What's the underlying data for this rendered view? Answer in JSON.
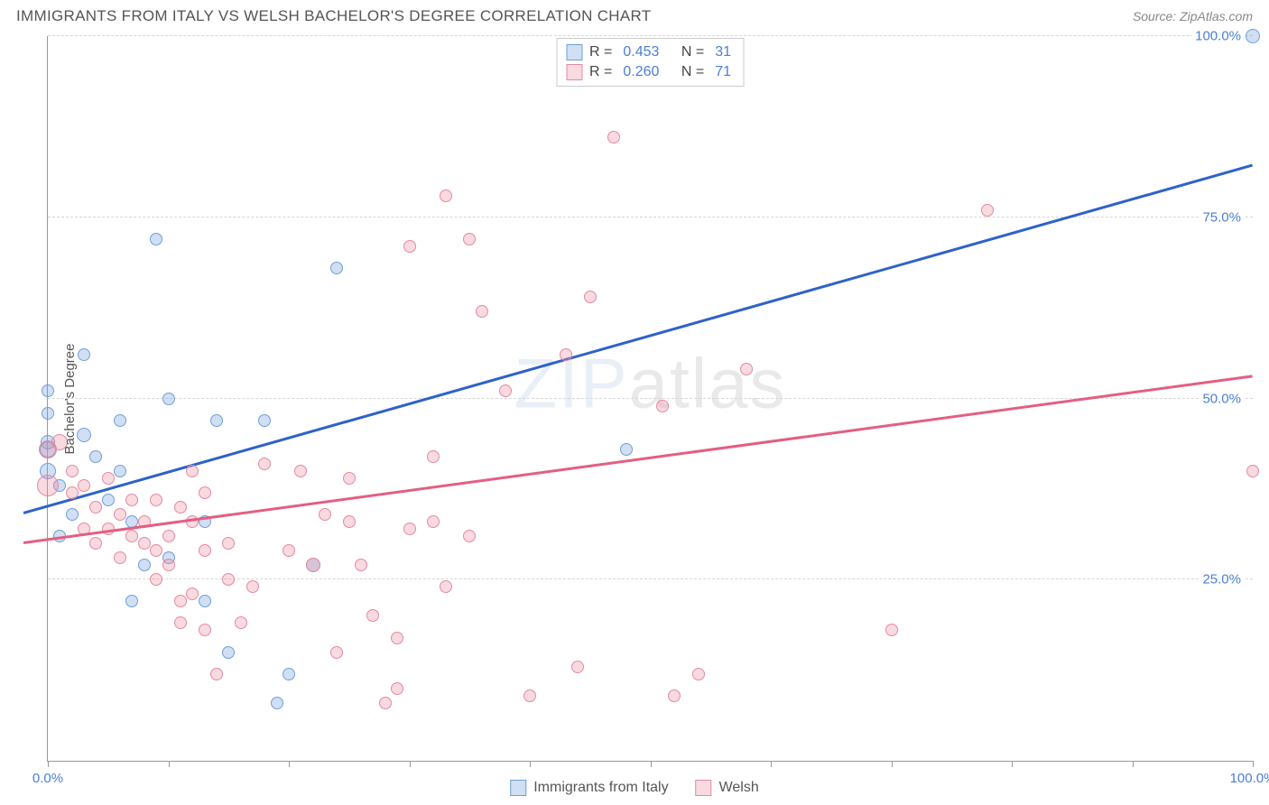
{
  "header": {
    "title": "IMMIGRANTS FROM ITALY VS WELSH BACHELOR'S DEGREE CORRELATION CHART",
    "source": "Source: ZipAtlas.com"
  },
  "chart": {
    "type": "scatter",
    "ylabel": "Bachelor's Degree",
    "xlim": [
      0,
      100
    ],
    "ylim": [
      0,
      100
    ],
    "xtick_positions": [
      0,
      10,
      20,
      30,
      40,
      50,
      60,
      70,
      80,
      90,
      100
    ],
    "xtick_labels": {
      "0": "0.0%",
      "100": "100.0%"
    },
    "ytick_positions": [
      0,
      25,
      50,
      75,
      100
    ],
    "ytick_labels": {
      "25": "25.0%",
      "50": "50.0%",
      "75": "75.0%",
      "100": "100.0%"
    },
    "grid_color": "#d6d6d6",
    "background_color": "#ffffff",
    "series": [
      {
        "name": "Immigrants from Italy",
        "fill": "rgba(119,163,221,0.35)",
        "stroke": "#6f9fd8",
        "line_color": "#2e62c9",
        "trend": {
          "x0": -2,
          "y0": 34,
          "x1": 100,
          "y1": 82
        },
        "R": "0.453",
        "N": "31",
        "points": [
          {
            "x": 100,
            "y": 100,
            "r": 8
          },
          {
            "x": 48,
            "y": 43,
            "r": 7
          },
          {
            "x": 24,
            "y": 68,
            "r": 7
          },
          {
            "x": 9,
            "y": 72,
            "r": 7
          },
          {
            "x": 3,
            "y": 56,
            "r": 7
          },
          {
            "x": 0,
            "y": 51,
            "r": 7
          },
          {
            "x": 10,
            "y": 50,
            "r": 7
          },
          {
            "x": 6,
            "y": 47,
            "r": 7
          },
          {
            "x": 14,
            "y": 47,
            "r": 7
          },
          {
            "x": 18,
            "y": 47,
            "r": 7
          },
          {
            "x": 0,
            "y": 48,
            "r": 7
          },
          {
            "x": 0,
            "y": 43,
            "r": 9
          },
          {
            "x": 0,
            "y": 44,
            "r": 8
          },
          {
            "x": 4,
            "y": 42,
            "r": 7
          },
          {
            "x": 1,
            "y": 38,
            "r": 7
          },
          {
            "x": 2,
            "y": 34,
            "r": 7
          },
          {
            "x": 7,
            "y": 33,
            "r": 7
          },
          {
            "x": 13,
            "y": 33,
            "r": 7
          },
          {
            "x": 8,
            "y": 27,
            "r": 7
          },
          {
            "x": 10,
            "y": 28,
            "r": 7
          },
          {
            "x": 22,
            "y": 27,
            "r": 8
          },
          {
            "x": 7,
            "y": 22,
            "r": 7
          },
          {
            "x": 13,
            "y": 22,
            "r": 7
          },
          {
            "x": 15,
            "y": 15,
            "r": 7
          },
          {
            "x": 20,
            "y": 12,
            "r": 7
          },
          {
            "x": 19,
            "y": 8,
            "r": 7
          },
          {
            "x": 3,
            "y": 45,
            "r": 8
          },
          {
            "x": 0,
            "y": 40,
            "r": 9
          },
          {
            "x": 5,
            "y": 36,
            "r": 7
          },
          {
            "x": 1,
            "y": 31,
            "r": 7
          },
          {
            "x": 6,
            "y": 40,
            "r": 7
          }
        ]
      },
      {
        "name": "Welsh",
        "fill": "rgba(234,140,160,0.32)",
        "stroke": "#e48aa0",
        "line_color": "#e35f82",
        "trend": {
          "x0": -2,
          "y0": 30,
          "x1": 100,
          "y1": 53
        },
        "R": "0.260",
        "N": "71",
        "points": [
          {
            "x": 100,
            "y": 40,
            "r": 7
          },
          {
            "x": 78,
            "y": 76,
            "r": 7
          },
          {
            "x": 70,
            "y": 18,
            "r": 7
          },
          {
            "x": 58,
            "y": 54,
            "r": 7
          },
          {
            "x": 54,
            "y": 12,
            "r": 7
          },
          {
            "x": 52,
            "y": 9,
            "r": 7
          },
          {
            "x": 51,
            "y": 49,
            "r": 7
          },
          {
            "x": 47,
            "y": 86,
            "r": 7
          },
          {
            "x": 45,
            "y": 64,
            "r": 7
          },
          {
            "x": 44,
            "y": 13,
            "r": 7
          },
          {
            "x": 43,
            "y": 56,
            "r": 7
          },
          {
            "x": 40,
            "y": 9,
            "r": 7
          },
          {
            "x": 38,
            "y": 51,
            "r": 7
          },
          {
            "x": 36,
            "y": 62,
            "r": 7
          },
          {
            "x": 35,
            "y": 31,
            "r": 7
          },
          {
            "x": 35,
            "y": 72,
            "r": 7
          },
          {
            "x": 33,
            "y": 78,
            "r": 7
          },
          {
            "x": 32,
            "y": 42,
            "r": 7
          },
          {
            "x": 32,
            "y": 33,
            "r": 7
          },
          {
            "x": 30,
            "y": 71,
            "r": 7
          },
          {
            "x": 30,
            "y": 32,
            "r": 7
          },
          {
            "x": 29,
            "y": 10,
            "r": 7
          },
          {
            "x": 29,
            "y": 17,
            "r": 7
          },
          {
            "x": 28,
            "y": 8,
            "r": 7
          },
          {
            "x": 26,
            "y": 27,
            "r": 7
          },
          {
            "x": 25,
            "y": 39,
            "r": 7
          },
          {
            "x": 25,
            "y": 33,
            "r": 7
          },
          {
            "x": 24,
            "y": 15,
            "r": 7
          },
          {
            "x": 23,
            "y": 34,
            "r": 7
          },
          {
            "x": 22,
            "y": 27,
            "r": 8
          },
          {
            "x": 21,
            "y": 40,
            "r": 7
          },
          {
            "x": 20,
            "y": 29,
            "r": 7
          },
          {
            "x": 18,
            "y": 41,
            "r": 7
          },
          {
            "x": 17,
            "y": 24,
            "r": 7
          },
          {
            "x": 16,
            "y": 19,
            "r": 7
          },
          {
            "x": 15,
            "y": 30,
            "r": 7
          },
          {
            "x": 15,
            "y": 25,
            "r": 7
          },
          {
            "x": 14,
            "y": 12,
            "r": 7
          },
          {
            "x": 13,
            "y": 37,
            "r": 7
          },
          {
            "x": 13,
            "y": 29,
            "r": 7
          },
          {
            "x": 13,
            "y": 18,
            "r": 7
          },
          {
            "x": 12,
            "y": 33,
            "r": 7
          },
          {
            "x": 12,
            "y": 40,
            "r": 7
          },
          {
            "x": 12,
            "y": 23,
            "r": 7
          },
          {
            "x": 11,
            "y": 35,
            "r": 7
          },
          {
            "x": 11,
            "y": 19,
            "r": 7
          },
          {
            "x": 10,
            "y": 27,
            "r": 7
          },
          {
            "x": 10,
            "y": 31,
            "r": 7
          },
          {
            "x": 9,
            "y": 36,
            "r": 7
          },
          {
            "x": 9,
            "y": 29,
            "r": 7
          },
          {
            "x": 9,
            "y": 25,
            "r": 7
          },
          {
            "x": 8,
            "y": 33,
            "r": 7
          },
          {
            "x": 8,
            "y": 30,
            "r": 7
          },
          {
            "x": 7,
            "y": 36,
            "r": 7
          },
          {
            "x": 7,
            "y": 31,
            "r": 7
          },
          {
            "x": 6,
            "y": 28,
            "r": 7
          },
          {
            "x": 6,
            "y": 34,
            "r": 7
          },
          {
            "x": 5,
            "y": 32,
            "r": 7
          },
          {
            "x": 5,
            "y": 39,
            "r": 7
          },
          {
            "x": 4,
            "y": 35,
            "r": 7
          },
          {
            "x": 4,
            "y": 30,
            "r": 7
          },
          {
            "x": 3,
            "y": 38,
            "r": 7
          },
          {
            "x": 3,
            "y": 32,
            "r": 7
          },
          {
            "x": 2,
            "y": 40,
            "r": 7
          },
          {
            "x": 2,
            "y": 37,
            "r": 7
          },
          {
            "x": 1,
            "y": 44,
            "r": 9
          },
          {
            "x": 0,
            "y": 43,
            "r": 10
          },
          {
            "x": 0,
            "y": 38,
            "r": 12
          },
          {
            "x": 11,
            "y": 22,
            "r": 7
          },
          {
            "x": 27,
            "y": 20,
            "r": 7
          },
          {
            "x": 33,
            "y": 24,
            "r": 7
          }
        ]
      }
    ]
  },
  "watermark": {
    "zip": "ZIP",
    "atlas": "atlas"
  },
  "legend_labels": {
    "R": "R =",
    "N": "N ="
  },
  "colors": {
    "title": "#555555",
    "source": "#888888",
    "tick_label": "#4a7fd6",
    "axis": "#999999"
  }
}
